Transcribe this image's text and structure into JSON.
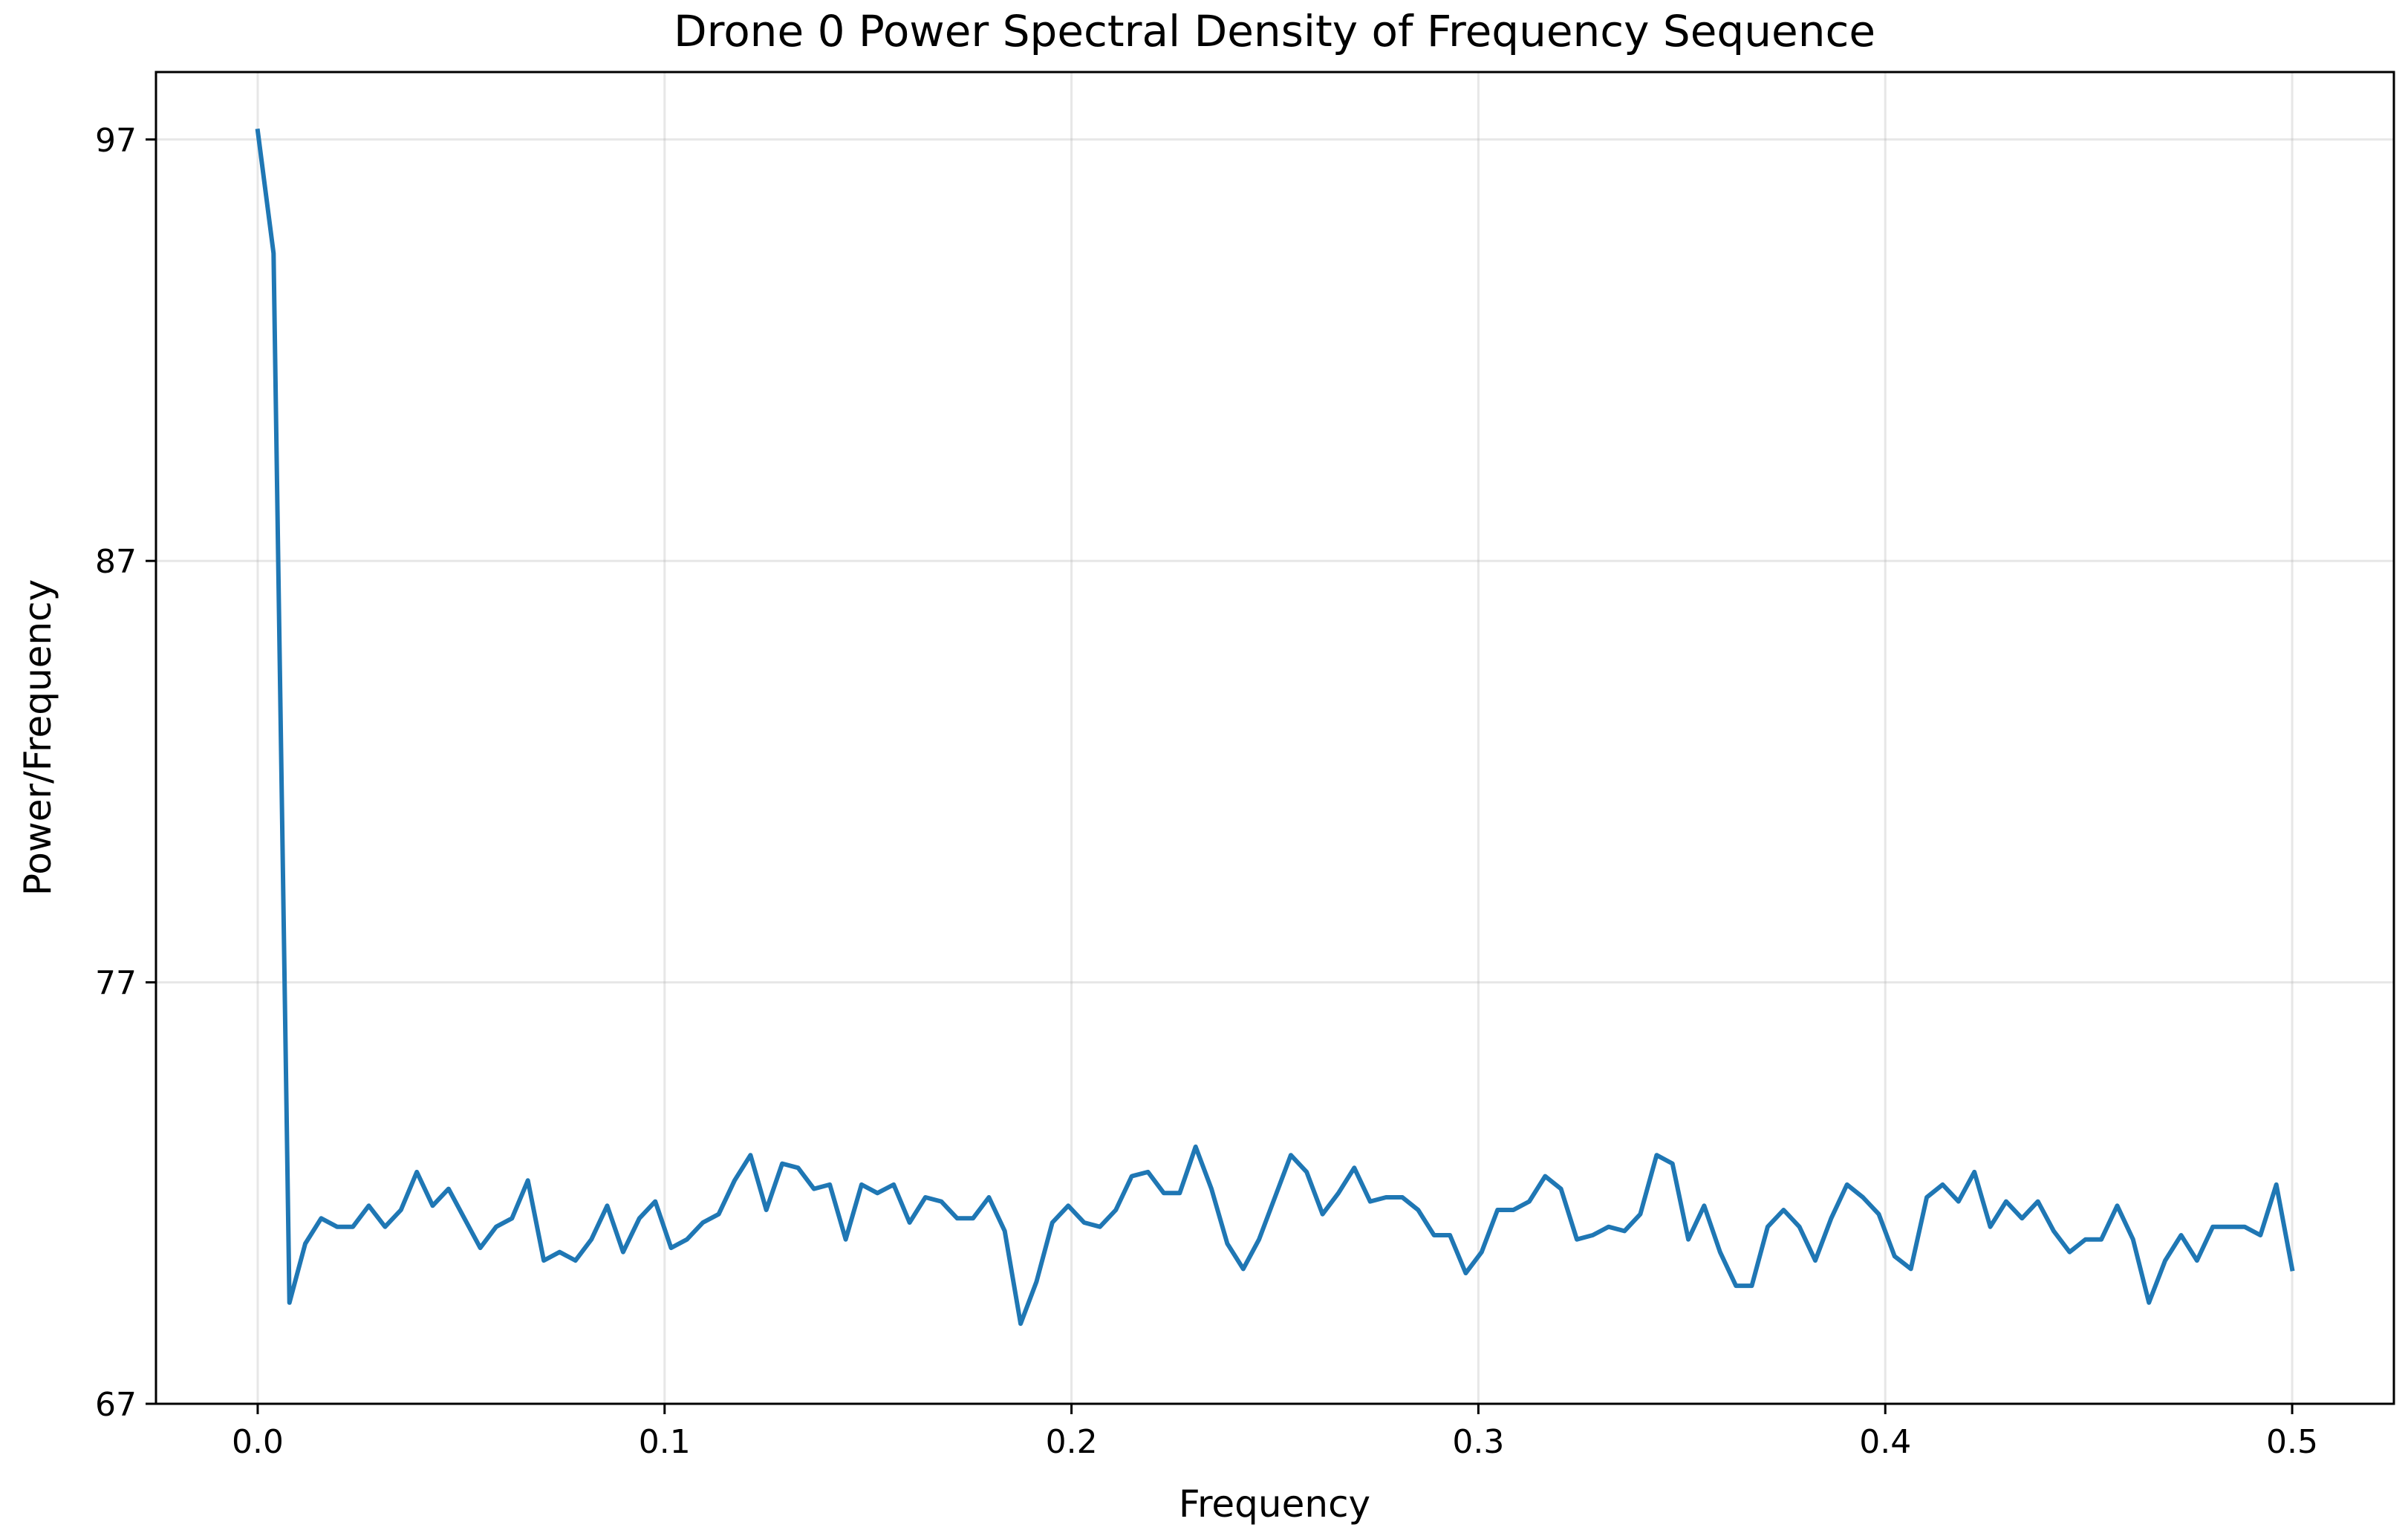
{
  "chart_data": {
    "type": "line",
    "title": "Drone 0 Power Spectral Density of Frequency Sequence",
    "xlabel": "Frequency",
    "ylabel": "Power/Frequency",
    "xlim": [
      -0.025,
      0.525
    ],
    "ylim": [
      67,
      98.6
    ],
    "xticks": [
      0.0,
      0.1,
      0.2,
      0.3,
      0.4,
      0.5
    ],
    "xtick_labels": [
      "0.0",
      "0.1",
      "0.2",
      "0.3",
      "0.4",
      "0.5"
    ],
    "yticks": [
      67,
      77,
      87,
      97
    ],
    "ytick_labels": [
      "67",
      "77",
      "87",
      "97"
    ],
    "grid": true,
    "legend": "none",
    "series": [
      {
        "color": "#1f77b4",
        "x": [
          0.0,
          0.0039,
          0.0078,
          0.0117,
          0.0156,
          0.0195,
          0.0234,
          0.0273,
          0.0313,
          0.0352,
          0.0391,
          0.043,
          0.0469,
          0.0508,
          0.0547,
          0.0586,
          0.0625,
          0.0664,
          0.0703,
          0.0742,
          0.0781,
          0.082,
          0.0859,
          0.0898,
          0.0938,
          0.0977,
          0.1016,
          0.1055,
          0.1094,
          0.1133,
          0.1172,
          0.1211,
          0.125,
          0.1289,
          0.1328,
          0.1367,
          0.1406,
          0.1445,
          0.1484,
          0.1523,
          0.1563,
          0.1602,
          0.1641,
          0.168,
          0.1719,
          0.1758,
          0.1797,
          0.1836,
          0.1875,
          0.1914,
          0.1953,
          0.1992,
          0.2031,
          0.207,
          0.2109,
          0.2148,
          0.2188,
          0.2227,
          0.2266,
          0.2305,
          0.2344,
          0.2383,
          0.2422,
          0.2461,
          0.25,
          0.2539,
          0.2578,
          0.2617,
          0.2656,
          0.2695,
          0.2734,
          0.2773,
          0.2813,
          0.2852,
          0.2891,
          0.293,
          0.2969,
          0.3008,
          0.3047,
          0.3086,
          0.3125,
          0.3164,
          0.3203,
          0.3242,
          0.3281,
          0.332,
          0.3359,
          0.3398,
          0.3438,
          0.3477,
          0.3516,
          0.3555,
          0.3594,
          0.3633,
          0.3672,
          0.3711,
          0.375,
          0.3789,
          0.3828,
          0.3867,
          0.3906,
          0.3945,
          0.3984,
          0.4023,
          0.4063,
          0.4102,
          0.4141,
          0.418,
          0.4219,
          0.4258,
          0.4297,
          0.4336,
          0.4375,
          0.4414,
          0.4453,
          0.4492,
          0.4531,
          0.457,
          0.4609,
          0.4648,
          0.4688,
          0.4727,
          0.4766,
          0.4805,
          0.4844,
          0.4883,
          0.4922,
          0.4961,
          0.5
        ],
        "y": [
          97.2,
          94.3,
          69.4,
          70.8,
          71.4,
          71.2,
          71.2,
          71.7,
          71.2,
          71.6,
          72.5,
          71.7,
          72.1,
          71.4,
          70.7,
          71.2,
          71.4,
          72.3,
          70.4,
          70.6,
          70.4,
          70.9,
          71.7,
          70.6,
          71.4,
          71.8,
          70.7,
          70.9,
          71.3,
          71.5,
          72.3,
          72.9,
          71.6,
          72.7,
          72.6,
          72.1,
          72.2,
          70.9,
          72.2,
          72.0,
          72.2,
          71.3,
          71.9,
          71.8,
          71.4,
          71.4,
          71.9,
          71.1,
          68.9,
          69.9,
          71.3,
          71.7,
          71.3,
          71.2,
          71.6,
          72.4,
          72.5,
          72.0,
          72.0,
          73.1,
          72.1,
          70.8,
          70.2,
          70.9,
          71.9,
          72.9,
          72.5,
          71.5,
          72.0,
          72.6,
          71.8,
          71.9,
          71.9,
          71.6,
          71.0,
          71.0,
          70.1,
          70.6,
          71.6,
          71.6,
          71.8,
          72.4,
          72.1,
          70.9,
          71.0,
          71.2,
          71.1,
          71.5,
          72.9,
          72.7,
          70.9,
          71.7,
          70.6,
          69.8,
          69.8,
          71.2,
          71.6,
          71.2,
          70.4,
          71.4,
          72.2,
          71.9,
          71.5,
          70.5,
          70.2,
          71.9,
          72.2,
          71.8,
          72.5,
          71.2,
          71.8,
          71.4,
          71.8,
          71.1,
          70.6,
          70.9,
          70.9,
          71.7,
          70.9,
          69.4,
          70.4,
          71.0,
          70.4,
          71.2,
          71.2,
          71.2,
          71.0,
          72.2,
          70.2
        ]
      }
    ]
  }
}
